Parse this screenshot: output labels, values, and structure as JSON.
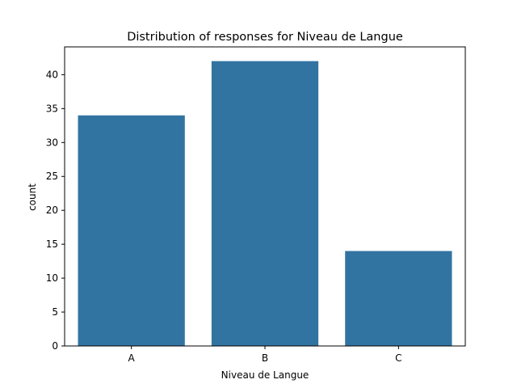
{
  "chart_data": {
    "type": "bar",
    "title": "Distribution of responses for Niveau de Langue",
    "xlabel": "Niveau de Langue",
    "ylabel": "count",
    "categories": [
      "A",
      "B",
      "C"
    ],
    "values": [
      34,
      42,
      14
    ],
    "ylim": [
      0,
      44.1
    ],
    "yticks": [
      0,
      5,
      10,
      15,
      20,
      25,
      30,
      35,
      40
    ],
    "grid": false,
    "bar_color": "#3274a1"
  }
}
